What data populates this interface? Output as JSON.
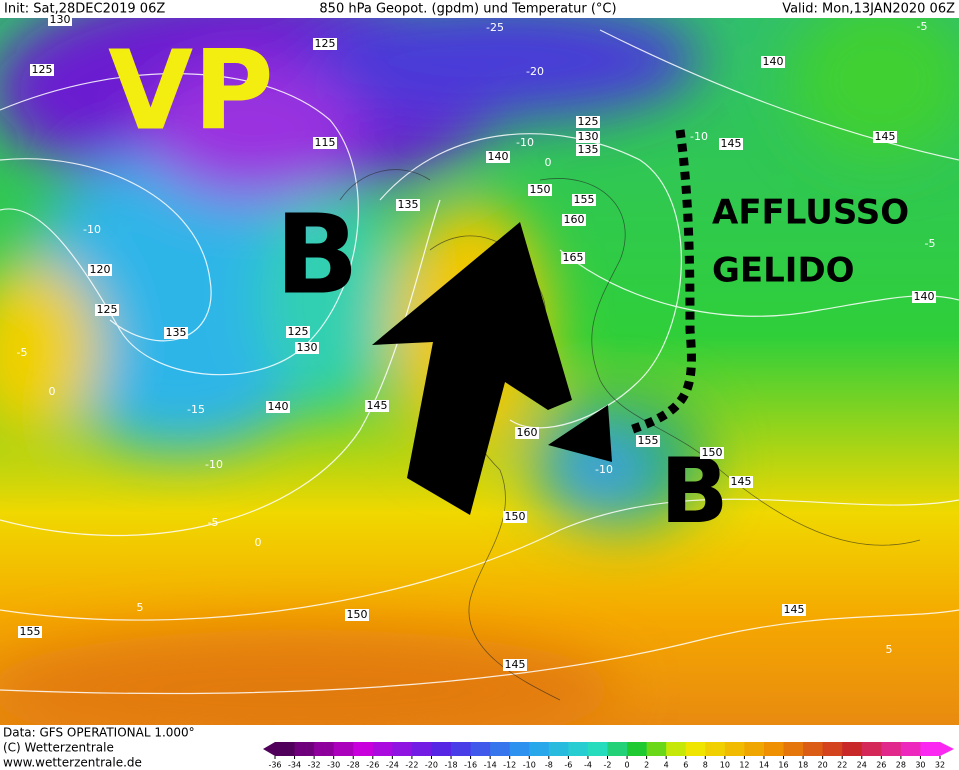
{
  "header": {
    "init": "Init: Sat,28DEC2019 06Z",
    "title": "850 hPa Geopot. (gpdm) und Temperatur (°C)",
    "valid": "Valid: Mon,13JAN2020 06Z"
  },
  "annotations": {
    "vp": "VP",
    "low_west": "B",
    "low_east": "B",
    "line1": "AFFLUSSO",
    "line2": "GELIDO"
  },
  "contour_labels": [
    "130",
    "125",
    "125",
    "-25",
    "140",
    "125",
    "130",
    "135",
    "140",
    "145",
    "145",
    "115",
    "150",
    "155",
    "160",
    "165",
    "135",
    "120",
    "125",
    "135",
    "125",
    "130",
    "140",
    "145",
    "160",
    "155",
    "150",
    "145",
    "140",
    "150",
    "145",
    "150",
    "155",
    "145",
    "-10",
    "-10",
    "0",
    "-10",
    "-5",
    "0",
    "-15",
    "-10",
    "-5",
    "0",
    "5",
    "5",
    "-5",
    "-20",
    "-5",
    "-10"
  ],
  "footer": {
    "data": "Data: GFS OPERATIONAL 1.000°",
    "copyright": "(C) Wetterzentrale",
    "site": "www.wetterzentrale.de"
  },
  "colorbar": {
    "ticks": [
      -36,
      -34,
      -32,
      -30,
      -28,
      -26,
      -24,
      -22,
      -20,
      -18,
      -16,
      -14,
      -12,
      -10,
      -8,
      -6,
      -4,
      -2,
      0,
      2,
      4,
      6,
      8,
      10,
      12,
      14,
      16,
      18,
      20,
      22,
      24,
      26,
      28,
      30,
      32
    ]
  }
}
